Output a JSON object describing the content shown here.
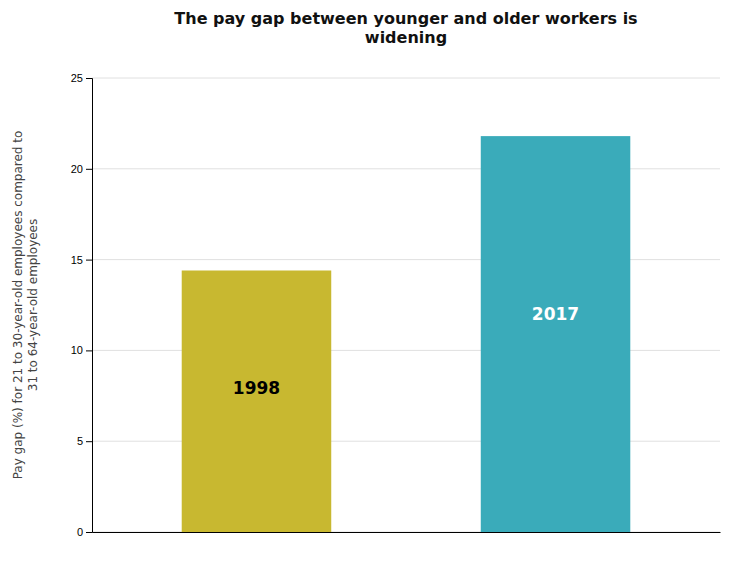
{
  "chart_data": {
    "type": "bar",
    "title": "The pay gap between younger and older workers is\nwidening",
    "ylabel": "Pay gap (%) for 21 to 30-year-old employees compared to\n31 to 64-year-old employees",
    "categories": [
      "1998",
      "2017"
    ],
    "values": [
      14.4,
      21.8
    ],
    "colors": [
      "#C8B830",
      "#3AABBA"
    ],
    "ylim": [
      0,
      25
    ],
    "yticks": [
      0,
      5,
      10,
      15,
      20,
      25
    ],
    "grid": true,
    "tick_labels": "y"
  }
}
